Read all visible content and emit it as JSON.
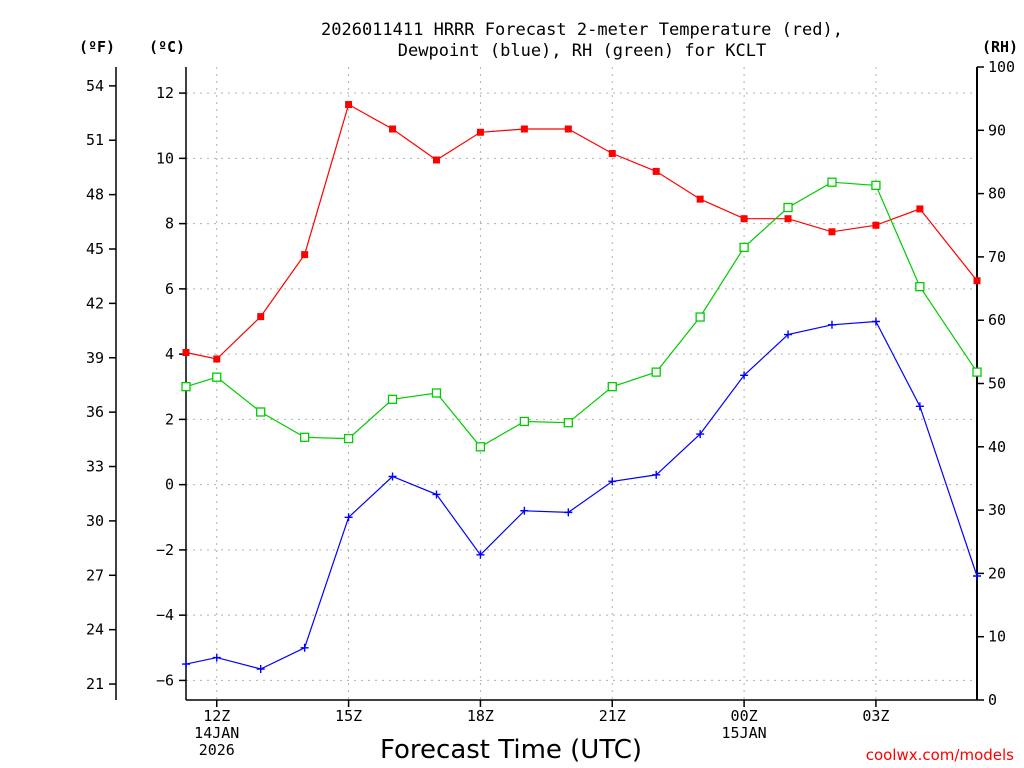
{
  "chart_data": {
    "type": "line",
    "title_lines": [
      "2026011411 HRRR Forecast 2-meter Temperature (red),",
      "Dewpoint (blue), RH (green) for KCLT"
    ],
    "xlabel": "Forecast Time (UTC)",
    "credit": "coolwx.com/models",
    "unit_labels": {
      "fahrenheit": "(ºF)",
      "celsius": "(ºC)",
      "rh": "(RH)"
    },
    "x_range": [
      11.3,
      29.3
    ],
    "x_ticks": [
      {
        "x": 12,
        "lines": [
          "12Z",
          "14JAN",
          "2026"
        ]
      },
      {
        "x": 15,
        "lines": [
          "15Z"
        ]
      },
      {
        "x": 18,
        "lines": [
          "18Z"
        ]
      },
      {
        "x": 21,
        "lines": [
          "21Z"
        ]
      },
      {
        "x": 24,
        "lines": [
          "00Z",
          "15JAN"
        ]
      },
      {
        "x": 27,
        "lines": [
          "03Z"
        ]
      }
    ],
    "y_celsius": {
      "range": [
        -6.6,
        12.8
      ],
      "ticks": [
        12,
        10,
        8,
        6,
        4,
        2,
        0,
        -2,
        -4,
        -6
      ],
      "tick_labels": [
        "12",
        "10",
        "8",
        "6",
        "4",
        "2",
        "0",
        "−2",
        "−4",
        "−6"
      ]
    },
    "y_fahrenheit": {
      "ticks": [
        54,
        51,
        48,
        45,
        42,
        39,
        36,
        33,
        30,
        27,
        24,
        21
      ],
      "tick_labels": [
        "54",
        "51",
        "48",
        "45",
        "42",
        "39",
        "36",
        "33",
        "30",
        "27",
        "24",
        "21"
      ]
    },
    "y_rh": {
      "range": [
        0,
        100
      ],
      "ticks": [
        100,
        90,
        80,
        70,
        60,
        50,
        40,
        30,
        20,
        10,
        0
      ],
      "tick_labels": [
        "100",
        "90",
        "80",
        "70",
        "60",
        "50",
        "40",
        "30",
        "20",
        "10",
        "0"
      ]
    },
    "series": [
      {
        "name": "2-meter Temperature",
        "axis": "celsius",
        "color": "#ff0000",
        "marker": "filled-square",
        "x": [
          11.3,
          12,
          13,
          14,
          15,
          16,
          17,
          18,
          19,
          20,
          21,
          22,
          23,
          24,
          25,
          26,
          27,
          28,
          29.3
        ],
        "values": [
          4.05,
          3.85,
          5.15,
          7.05,
          11.65,
          10.9,
          9.95,
          10.8,
          10.9,
          10.9,
          10.15,
          9.6,
          8.75,
          8.15,
          8.15,
          7.75,
          7.95,
          8.45,
          6.25
        ]
      },
      {
        "name": "Dewpoint",
        "axis": "celsius",
        "color": "#0000ff",
        "marker": "plus",
        "x": [
          11.3,
          12,
          13,
          14,
          15,
          16,
          17,
          18,
          19,
          20,
          21,
          22,
          23,
          24,
          25,
          26,
          27,
          28,
          29.3
        ],
        "values": [
          -5.5,
          -5.3,
          -5.65,
          -5.0,
          -1.0,
          0.25,
          -0.3,
          -2.15,
          -0.8,
          -0.85,
          0.1,
          0.3,
          1.55,
          3.35,
          4.6,
          4.9,
          5.0,
          2.4,
          -2.8
        ]
      },
      {
        "name": "Relative Humidity",
        "axis": "rh",
        "color": "#00cc00",
        "marker": "open-square",
        "x": [
          11.3,
          12,
          13,
          14,
          15,
          16,
          17,
          18,
          19,
          20,
          21,
          22,
          23,
          24,
          25,
          26,
          27,
          28,
          29.3
        ],
        "values": [
          49.5,
          51.0,
          45.5,
          41.5,
          41.3,
          47.5,
          48.5,
          40.0,
          44.0,
          43.8,
          49.5,
          51.8,
          60.5,
          71.5,
          77.8,
          81.8,
          81.3,
          65.3,
          51.8
        ]
      }
    ]
  }
}
